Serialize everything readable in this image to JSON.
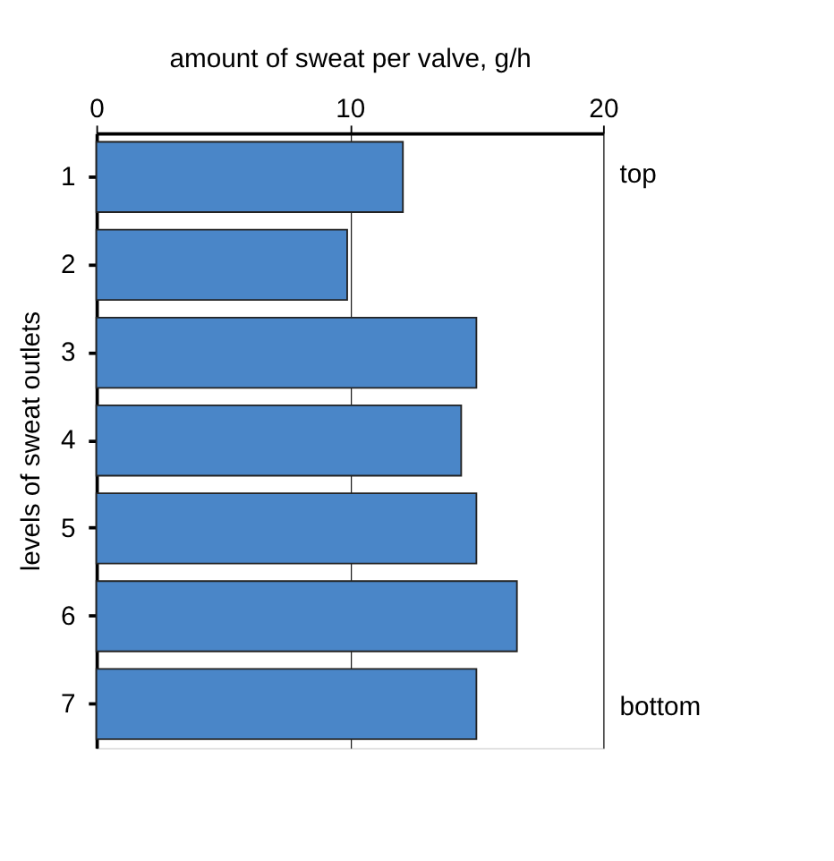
{
  "chart_data": {
    "type": "bar",
    "orientation": "horizontal",
    "xlabel": "amount of sweat per valve, g/h",
    "ylabel": "levels of sweat outlets",
    "categories": [
      "1",
      "2",
      "3",
      "4",
      "5",
      "6",
      "7"
    ],
    "values": [
      12.1,
      9.9,
      15.0,
      14.4,
      15.0,
      16.6,
      15.0
    ],
    "color": "#4a86c8",
    "xlim": [
      0,
      20
    ],
    "xticks": [
      0,
      10,
      20
    ],
    "grid": "x",
    "annotations": [
      "top",
      "bottom"
    ]
  }
}
